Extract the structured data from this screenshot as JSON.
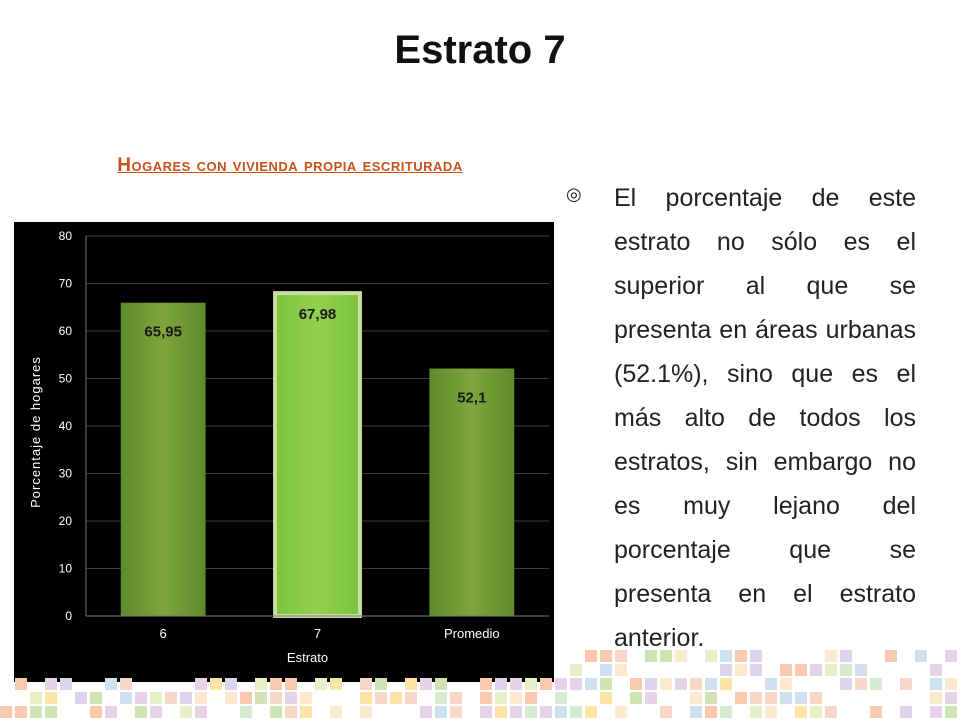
{
  "slide": {
    "title": "Estrato 7",
    "bullet_text": "El porcentaje de este estrato no sólo es el superior al que se presenta en áreas urbanas (52.1%), sino que es el más alto de todos los estratos, sin embargo no es muy lejano del porcentaje que se presenta en el estrato anterior."
  },
  "chart_data": {
    "type": "bar",
    "title": "Hogares con vivienda propia escriturada",
    "xlabel": "Estrato",
    "ylabel": "Porcentaje de hogares",
    "categories": [
      "6",
      "7",
      "Promedio"
    ],
    "values": [
      65.95,
      67.98,
      52.1
    ],
    "value_labels": [
      "65,95",
      "67,98",
      "52,1"
    ],
    "highlighted_category": "7",
    "ylim": [
      0,
      80
    ],
    "yticks": [
      0,
      10,
      20,
      30,
      40,
      50,
      60,
      70,
      80
    ],
    "grid": true,
    "legend": "none",
    "colors": {
      "background": "#000000",
      "bar": "#7ea63c",
      "bar_highlight": "#92d050",
      "bar_highlight_border": "#c8dca0",
      "axis_text": "#ffffff",
      "title": "#c8521a"
    }
  }
}
